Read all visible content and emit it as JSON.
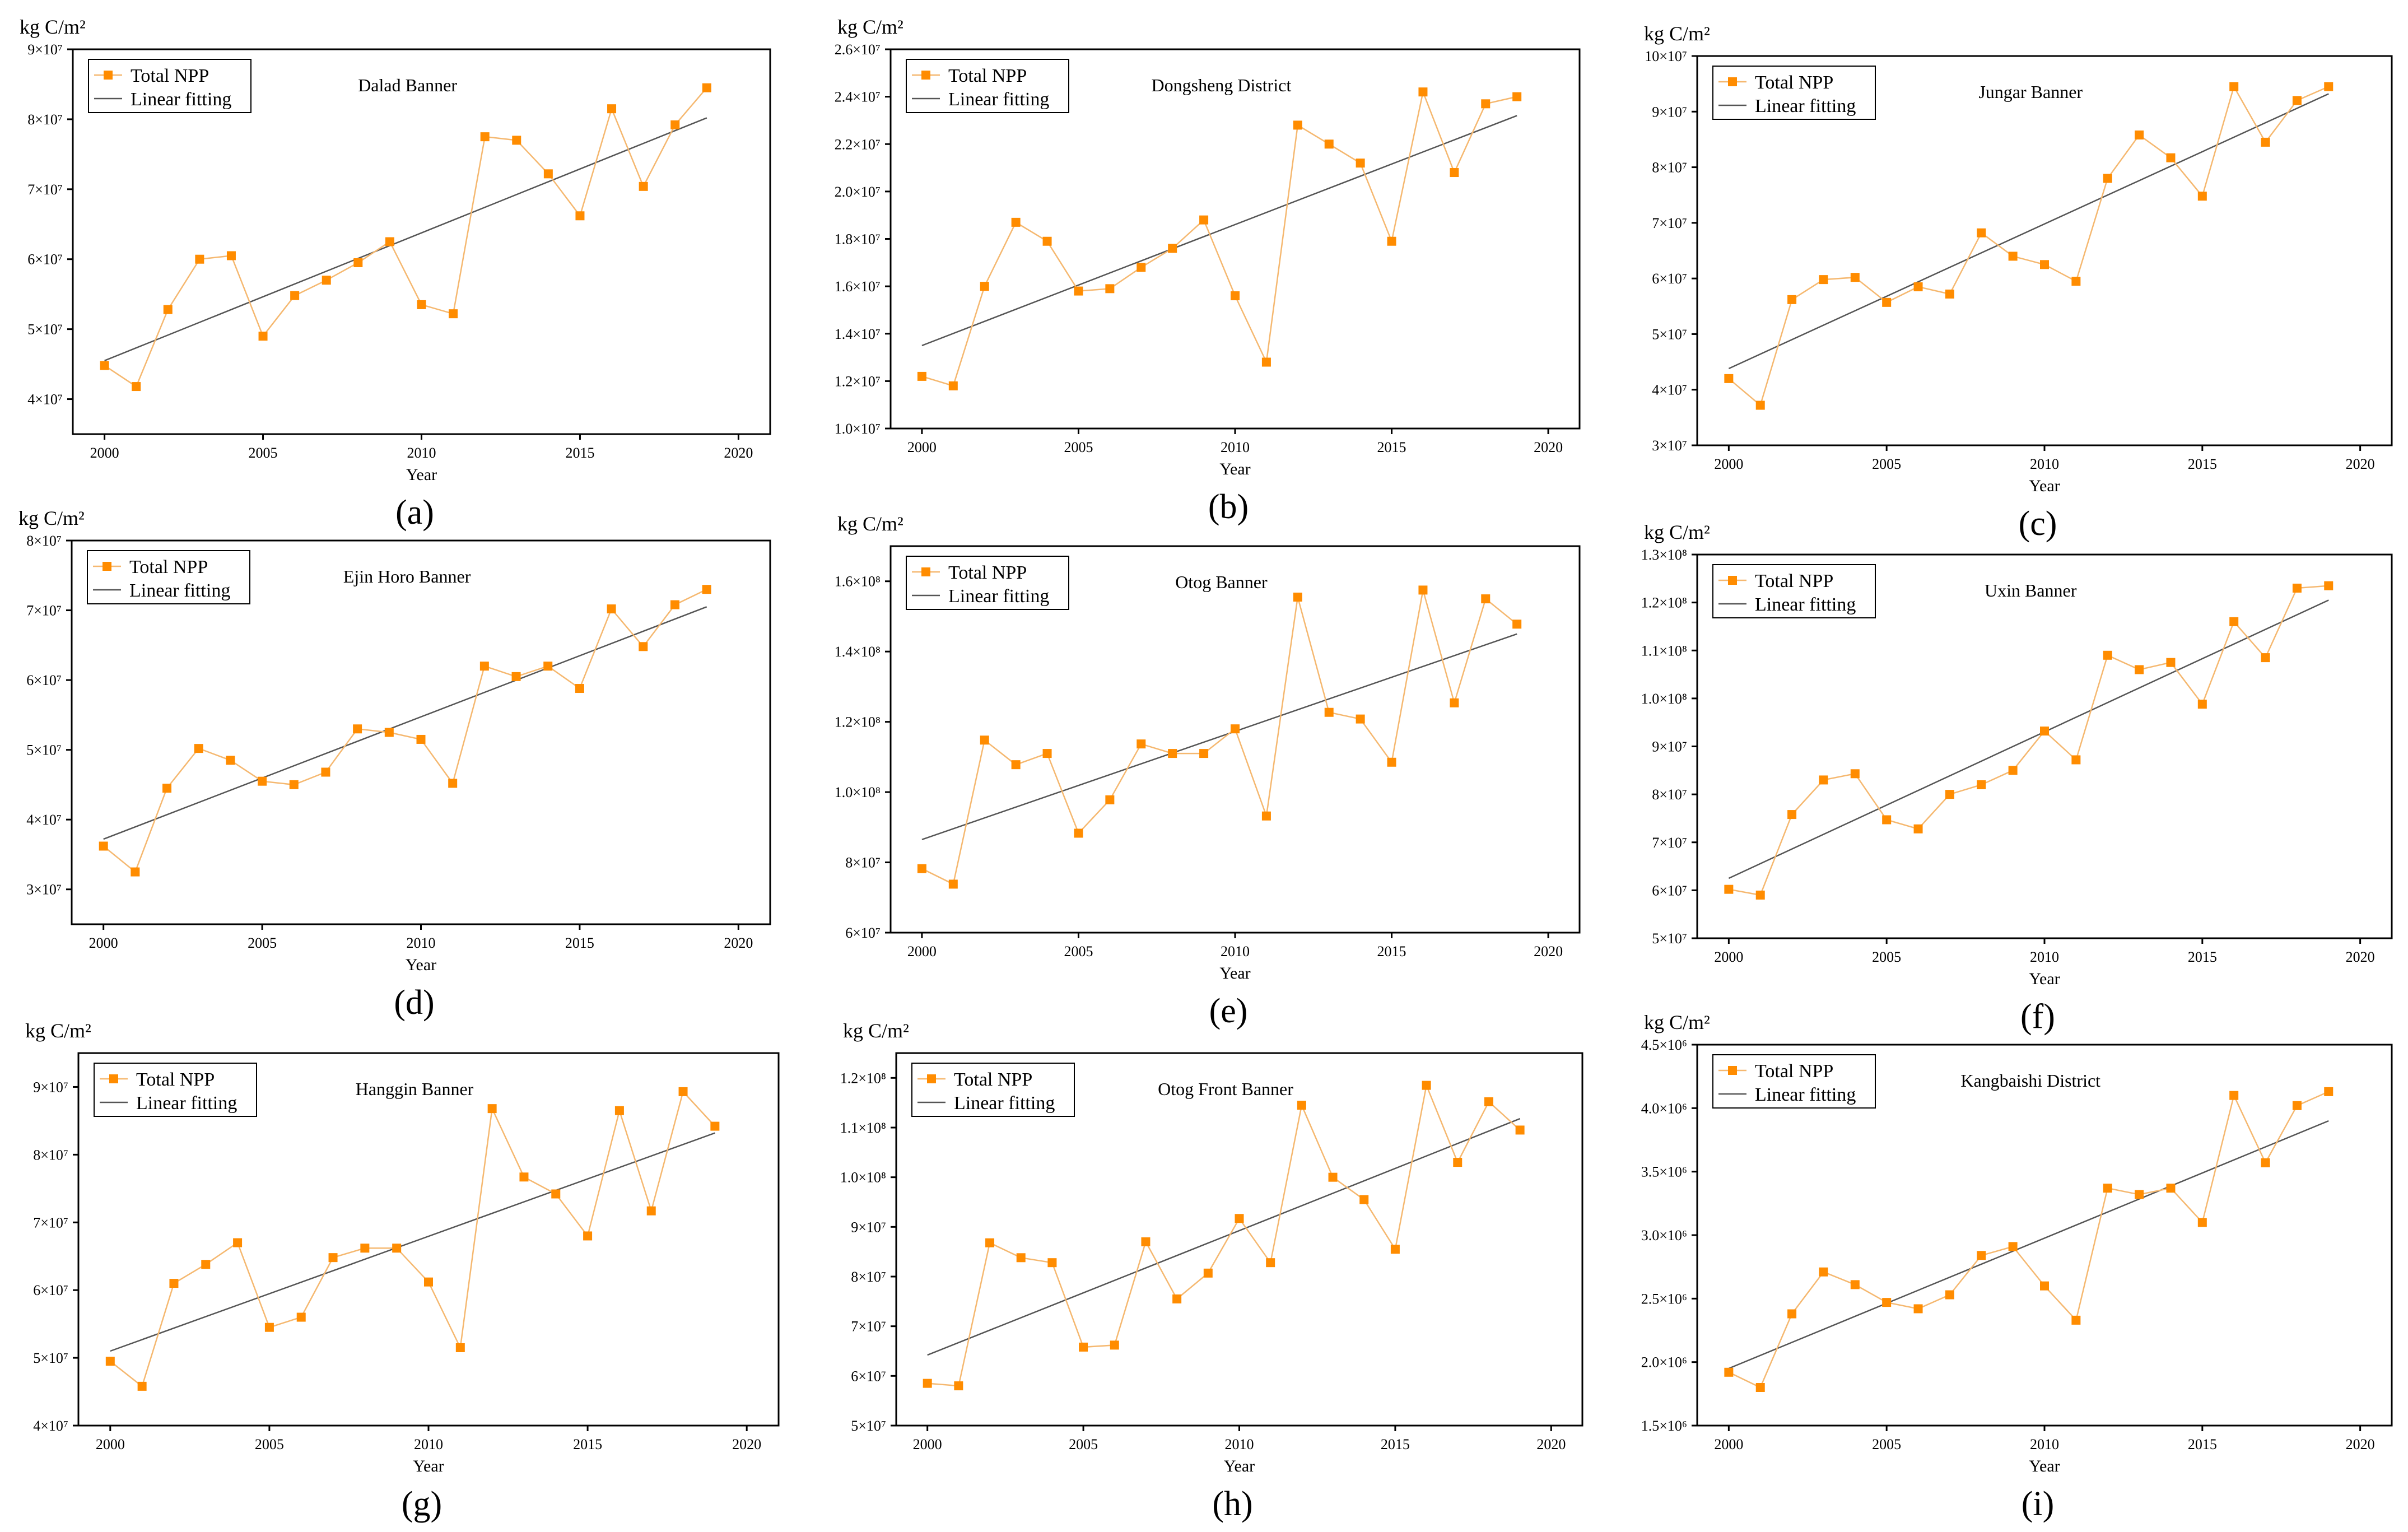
{
  "colors": {
    "npp": "#FF8C00",
    "npp_line": "#F5B870",
    "fit": "#555555"
  },
  "legend": {
    "npp_label": "Total NPP",
    "fit_label": "Linear fitting"
  },
  "axis": {
    "xlabel": "Year",
    "unit_label": "kg C/m²"
  },
  "chart_data": [
    {
      "type": "line",
      "title": "Dalad Banner",
      "caption": "(a)",
      "exponent": 7,
      "y_ticks": [
        4,
        5,
        6,
        7,
        8,
        9
      ],
      "ylim": [
        3.5,
        9
      ],
      "xlim": [
        1999,
        2021
      ],
      "x_ticks": [
        2000,
        2005,
        2010,
        2015,
        2020
      ],
      "x": [
        2000,
        2001,
        2002,
        2003,
        2004,
        2005,
        2006,
        2007,
        2008,
        2009,
        2010,
        2011,
        2012,
        2013,
        2014,
        2015,
        2016,
        2017,
        2018,
        2019
      ],
      "series": [
        {
          "name": "Total NPP",
          "values": [
            4.48,
            4.18,
            5.28,
            6.0,
            6.05,
            4.9,
            5.48,
            5.7,
            5.95,
            6.25,
            5.35,
            5.22,
            7.75,
            7.7,
            7.22,
            6.62,
            8.15,
            7.04,
            7.92,
            8.45
          ]
        }
      ],
      "fit": [
        4.55,
        8.02
      ]
    },
    {
      "type": "line",
      "title": "Dongsheng District",
      "caption": "(b)",
      "exponent": 7,
      "y_ticks": [
        1.0,
        1.2,
        1.4,
        1.6,
        1.8,
        2.0,
        2.2,
        2.4,
        2.6
      ],
      "ylim": [
        1.0,
        2.6
      ],
      "xlim": [
        1999,
        2021
      ],
      "x_ticks": [
        2000,
        2005,
        2010,
        2015,
        2020
      ],
      "x": [
        2000,
        2001,
        2002,
        2003,
        2004,
        2005,
        2006,
        2007,
        2008,
        2009,
        2010,
        2011,
        2012,
        2013,
        2014,
        2015,
        2016,
        2017,
        2018,
        2019
      ],
      "series": [
        {
          "name": "Total NPP",
          "values": [
            1.22,
            1.18,
            1.6,
            1.87,
            1.79,
            1.58,
            1.59,
            1.68,
            1.76,
            1.88,
            1.56,
            1.28,
            2.28,
            2.2,
            2.12,
            1.79,
            2.42,
            2.08,
            2.37,
            2.4
          ]
        }
      ],
      "fit": [
        1.35,
        2.32
      ]
    },
    {
      "type": "line",
      "title": "Jungar Banner",
      "caption": "(c)",
      "exponent": 7,
      "y_ticks": [
        3,
        4,
        5,
        6,
        7,
        8,
        9,
        10
      ],
      "ylim": [
        3,
        10
      ],
      "xlim": [
        1999,
        2021
      ],
      "x_ticks": [
        2000,
        2005,
        2010,
        2015,
        2020
      ],
      "x": [
        2000,
        2001,
        2002,
        2003,
        2004,
        2005,
        2006,
        2007,
        2008,
        2009,
        2010,
        2011,
        2012,
        2013,
        2014,
        2015,
        2016,
        2017,
        2018,
        2019
      ],
      "series": [
        {
          "name": "Total NPP",
          "values": [
            4.2,
            3.72,
            5.62,
            5.98,
            6.02,
            5.57,
            5.85,
            5.72,
            6.82,
            6.4,
            6.25,
            5.95,
            7.8,
            8.58,
            8.17,
            7.48,
            9.45,
            8.45,
            9.2,
            9.45
          ]
        }
      ],
      "fit": [
        4.38,
        9.32
      ]
    },
    {
      "type": "line",
      "title": "Ejin Horo Banner",
      "caption": "(d)",
      "exponent": 7,
      "y_ticks": [
        3,
        4,
        5,
        6,
        7,
        8
      ],
      "ylim": [
        2.5,
        8
      ],
      "xlim": [
        1999,
        2021
      ],
      "x_ticks": [
        2000,
        2005,
        2010,
        2015,
        2020
      ],
      "x": [
        2000,
        2001,
        2002,
        2003,
        2004,
        2005,
        2006,
        2007,
        2008,
        2009,
        2010,
        2011,
        2012,
        2013,
        2014,
        2015,
        2016,
        2017,
        2018,
        2019
      ],
      "series": [
        {
          "name": "Total NPP",
          "values": [
            3.62,
            3.25,
            4.45,
            5.02,
            4.85,
            4.55,
            4.5,
            4.68,
            5.3,
            5.25,
            5.15,
            4.52,
            6.2,
            6.05,
            6.2,
            5.88,
            7.02,
            6.48,
            7.08,
            7.3
          ]
        }
      ],
      "fit": [
        3.72,
        7.05
      ]
    },
    {
      "type": "line",
      "title": "Otog Banner",
      "caption": "(e)",
      "exponent_label": true,
      "y_tick_labels": [
        "6×10⁷",
        "8×10⁷",
        "1.0×10⁸",
        "1.2×10⁸",
        "1.4×10⁸",
        "1.6×10⁸"
      ],
      "y_ticks": [
        6,
        8,
        10,
        12,
        14,
        16
      ],
      "ylim": [
        6,
        17
      ],
      "xlim": [
        1999,
        2021
      ],
      "x_ticks": [
        2000,
        2005,
        2010,
        2015,
        2020
      ],
      "x": [
        2000,
        2001,
        2002,
        2003,
        2004,
        2005,
        2006,
        2007,
        2008,
        2009,
        2010,
        2011,
        2012,
        2013,
        2014,
        2015,
        2016,
        2017,
        2018,
        2019
      ],
      "series": [
        {
          "name": "Total NPP",
          "values": [
            7.82,
            7.38,
            11.48,
            10.78,
            11.1,
            8.83,
            9.78,
            11.37,
            11.1,
            11.1,
            11.8,
            9.32,
            15.55,
            12.27,
            12.08,
            10.85,
            15.75,
            12.54,
            15.5,
            14.78
          ]
        }
      ],
      "fit": [
        8.65,
        14.5
      ]
    },
    {
      "type": "line",
      "title": "Uxin Banner",
      "caption": "(f)",
      "exponent_label": true,
      "y_tick_labels": [
        "5×10⁷",
        "6×10⁷",
        "7×10⁷",
        "8×10⁷",
        "9×10⁷",
        "1.0×10⁸",
        "1.1×10⁸",
        "1.2×10⁸",
        "1.3×10⁸"
      ],
      "y_ticks": [
        5,
        6,
        7,
        8,
        9,
        10,
        11,
        12,
        13
      ],
      "ylim": [
        5,
        13
      ],
      "xlim": [
        1999,
        2021
      ],
      "x_ticks": [
        2000,
        2005,
        2010,
        2015,
        2020
      ],
      "x": [
        2000,
        2001,
        2002,
        2003,
        2004,
        2005,
        2006,
        2007,
        2008,
        2009,
        2010,
        2011,
        2012,
        2013,
        2014,
        2015,
        2016,
        2017,
        2018,
        2019
      ],
      "series": [
        {
          "name": "Total NPP",
          "values": [
            6.02,
            5.9,
            7.58,
            8.3,
            8.43,
            7.47,
            7.28,
            8.0,
            8.2,
            8.5,
            9.32,
            8.72,
            10.9,
            10.6,
            10.75,
            9.88,
            11.6,
            10.85,
            12.3,
            12.35
          ]
        }
      ],
      "fit": [
        6.25,
        12.05
      ]
    },
    {
      "type": "line",
      "title": "Hanggin Banner",
      "caption": "(g)",
      "exponent": 7,
      "y_ticks": [
        4,
        5,
        6,
        7,
        8,
        9
      ],
      "ylim": [
        4,
        9.5
      ],
      "xlim": [
        1999,
        2021
      ],
      "x_ticks": [
        2000,
        2005,
        2010,
        2015,
        2020
      ],
      "x": [
        2000,
        2001,
        2002,
        2003,
        2004,
        2005,
        2006,
        2007,
        2008,
        2009,
        2010,
        2011,
        2012,
        2013,
        2014,
        2015,
        2016,
        2017,
        2018,
        2019
      ],
      "series": [
        {
          "name": "Total NPP",
          "values": [
            4.95,
            4.58,
            6.1,
            6.38,
            6.7,
            5.45,
            5.6,
            6.48,
            6.62,
            6.62,
            6.12,
            5.15,
            8.68,
            7.67,
            7.42,
            6.8,
            8.65,
            7.17,
            8.93,
            8.42
          ]
        }
      ],
      "fit": [
        5.1,
        8.32
      ]
    },
    {
      "type": "line",
      "title": "Otog Front Banner",
      "caption": "(h)",
      "exponent_label": true,
      "y_tick_labels": [
        "5×10⁷",
        "6×10⁷",
        "7×10⁷",
        "8×10⁷",
        "9×10⁷",
        "1.0×10⁸",
        "1.1×10⁸",
        "1.2×10⁸"
      ],
      "y_ticks": [
        5,
        6,
        7,
        8,
        9,
        10,
        11,
        12
      ],
      "ylim": [
        5,
        12.5
      ],
      "xlim": [
        1999,
        2021
      ],
      "x_ticks": [
        2000,
        2005,
        2010,
        2015,
        2020
      ],
      "x": [
        2000,
        2001,
        2002,
        2003,
        2004,
        2005,
        2006,
        2007,
        2008,
        2009,
        2010,
        2011,
        2012,
        2013,
        2014,
        2015,
        2016,
        2017,
        2018,
        2019
      ],
      "series": [
        {
          "name": "Total NPP",
          "values": [
            5.85,
            5.8,
            8.68,
            8.38,
            8.28,
            6.58,
            6.62,
            8.7,
            7.55,
            8.07,
            9.17,
            8.28,
            11.45,
            10.0,
            9.55,
            8.55,
            11.85,
            10.3,
            11.52,
            10.95
          ]
        }
      ],
      "fit": [
        6.42,
        11.18
      ]
    },
    {
      "type": "line",
      "title": "Kangbaishi District",
      "caption": "(i)",
      "exponent": 6,
      "y_ticks": [
        1.5,
        2.0,
        2.5,
        3.0,
        3.5,
        4.0,
        4.5
      ],
      "ylim": [
        1.5,
        4.5
      ],
      "xlim": [
        1999,
        2021
      ],
      "x_ticks": [
        2000,
        2005,
        2010,
        2015,
        2020
      ],
      "x": [
        2000,
        2001,
        2002,
        2003,
        2004,
        2005,
        2006,
        2007,
        2008,
        2009,
        2010,
        2011,
        2012,
        2013,
        2014,
        2015,
        2016,
        2017,
        2018,
        2019
      ],
      "series": [
        {
          "name": "Total NPP",
          "values": [
            1.92,
            1.8,
            2.38,
            2.71,
            2.61,
            2.47,
            2.42,
            2.53,
            2.84,
            2.91,
            2.6,
            2.33,
            3.37,
            3.32,
            3.37,
            3.1,
            4.1,
            3.57,
            4.02,
            4.13
          ]
        }
      ],
      "fit": [
        1.95,
        3.9
      ]
    }
  ]
}
